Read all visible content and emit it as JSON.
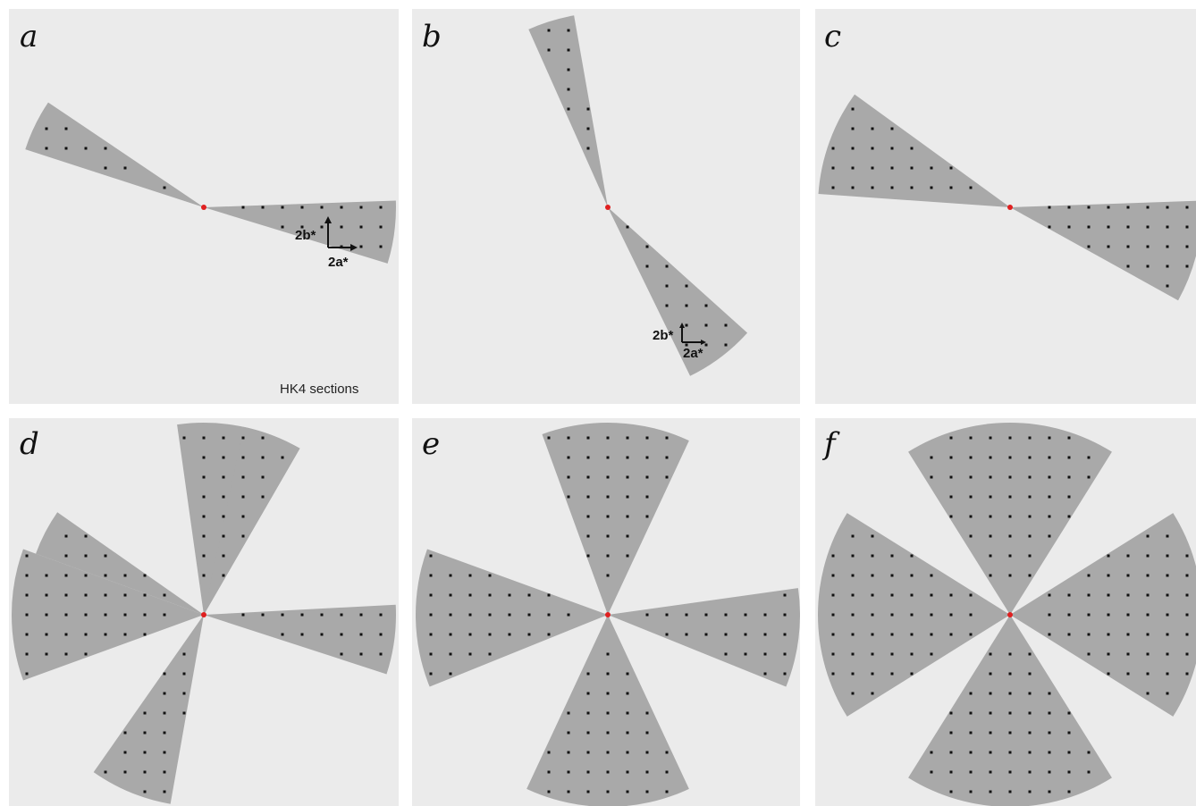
{
  "panels": [
    {
      "label": "a",
      "annotations": [
        "2b*",
        "2a*",
        "HK4 sections"
      ]
    },
    {
      "label": "b",
      "annotations": [
        "2b*",
        "2a*"
      ]
    },
    {
      "label": "c"
    },
    {
      "label": "d"
    },
    {
      "label": "e"
    },
    {
      "label": "f"
    }
  ]
}
